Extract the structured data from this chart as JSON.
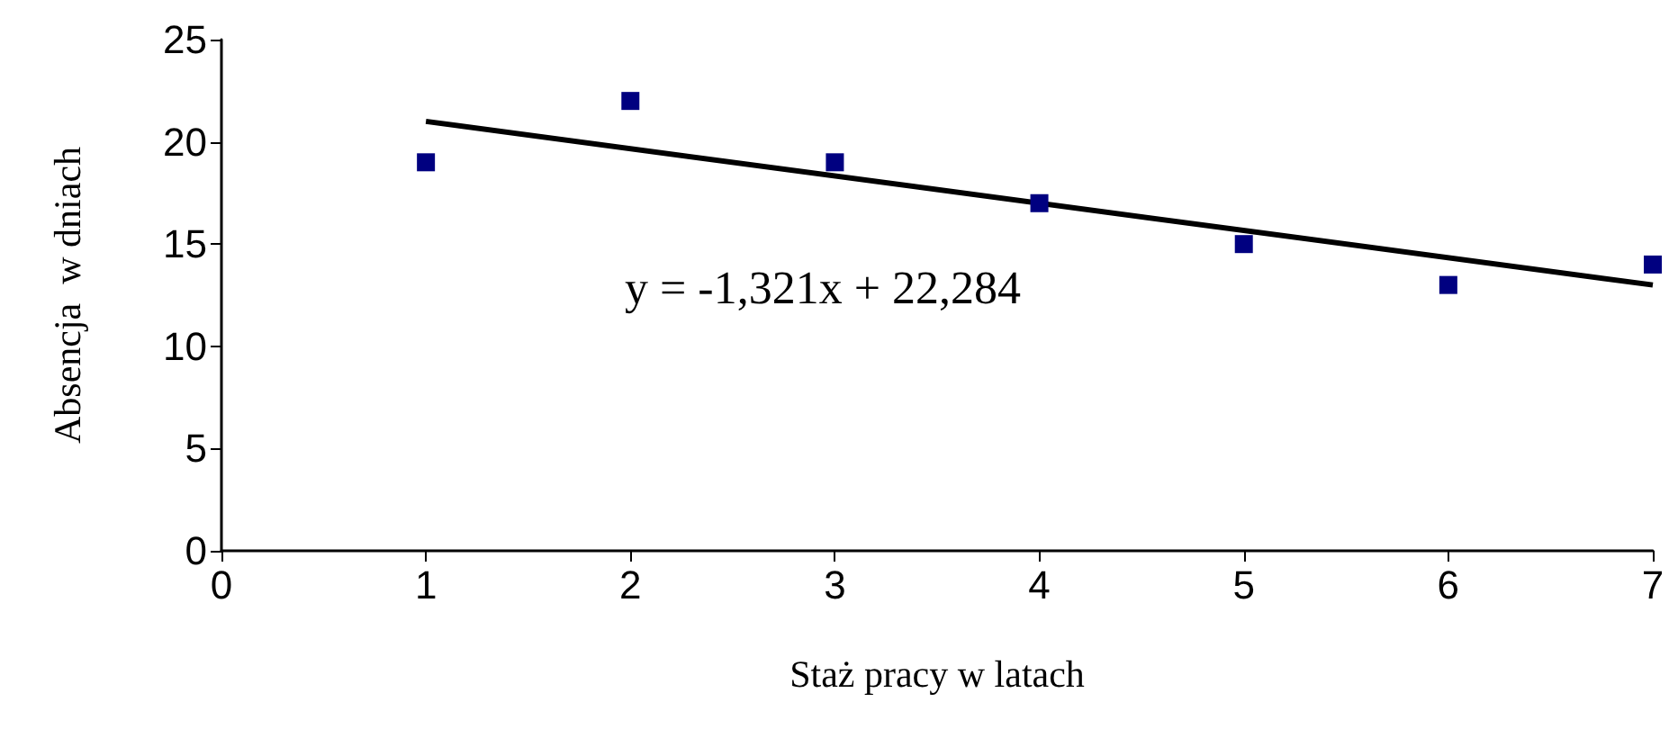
{
  "chart_data": {
    "type": "scatter",
    "xlabel": "Staż pracy w latach",
    "ylabel": "Absencja  w dniach",
    "annotations": [
      "y = -1,321x + 22,284"
    ],
    "x": [
      1,
      2,
      3,
      4,
      5,
      6,
      7
    ],
    "series": [
      {
        "color": "#000080",
        "marker": "square",
        "values": [
          19,
          22,
          19,
          17,
          15,
          13,
          14
        ]
      },
      {
        "type": "line",
        "color": "#000000",
        "marker": "none",
        "x": [
          1,
          7
        ],
        "values": [
          21,
          13
        ]
      }
    ],
    "xlim": [
      0,
      7
    ],
    "ylim": [
      0,
      25
    ],
    "xticks": [
      0,
      1,
      2,
      3,
      4,
      5,
      6,
      7
    ],
    "yticks": [
      0,
      5,
      10,
      15,
      20,
      25
    ],
    "grid": false
  }
}
